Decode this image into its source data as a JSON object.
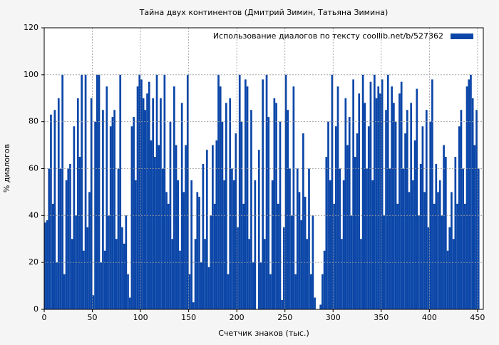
{
  "chart_data": {
    "type": "bar",
    "title": "Тайна двух континентов (Дмитрий Зимин, Татьяна Зимина)",
    "x_label": "Счетчик знаков (тыс.)",
    "y_label": "% диалогов",
    "legend_position": "upper right",
    "grid": true,
    "xlim": [
      0,
      456
    ],
    "ylim": [
      0,
      120
    ],
    "xticks": [
      0,
      50,
      100,
      150,
      200,
      250,
      300,
      350,
      400,
      450
    ],
    "yticks": [
      0,
      20,
      40,
      60,
      80,
      100,
      120
    ],
    "series": [
      {
        "name": "Использование диалогов по тексту  coollib.net/b/527362",
        "color": "#0b46a8",
        "x": [
          0,
          2,
          4,
          6,
          8,
          10,
          12,
          14,
          16,
          18,
          20,
          22,
          24,
          26,
          28,
          30,
          32,
          34,
          36,
          38,
          40,
          42,
          44,
          46,
          48,
          50,
          52,
          54,
          56,
          58,
          60,
          62,
          64,
          66,
          68,
          70,
          72,
          74,
          76,
          78,
          80,
          82,
          84,
          86,
          88,
          90,
          92,
          94,
          96,
          98,
          100,
          102,
          104,
          106,
          108,
          110,
          112,
          114,
          116,
          118,
          120,
          122,
          124,
          126,
          128,
          130,
          132,
          134,
          136,
          138,
          140,
          142,
          144,
          146,
          148,
          150,
          152,
          154,
          156,
          158,
          160,
          162,
          164,
          166,
          168,
          170,
          172,
          174,
          176,
          178,
          180,
          182,
          184,
          186,
          188,
          190,
          192,
          194,
          196,
          198,
          200,
          202,
          204,
          206,
          208,
          210,
          212,
          214,
          216,
          218,
          220,
          222,
          224,
          226,
          228,
          230,
          232,
          234,
          236,
          238,
          240,
          242,
          244,
          246,
          248,
          250,
          252,
          254,
          256,
          258,
          260,
          262,
          264,
          266,
          268,
          270,
          272,
          274,
          276,
          278,
          280,
          282,
          284,
          286,
          288,
          290,
          292,
          294,
          296,
          298,
          300,
          302,
          304,
          306,
          308,
          310,
          312,
          314,
          316,
          318,
          320,
          322,
          324,
          326,
          328,
          330,
          332,
          334,
          336,
          338,
          340,
          342,
          344,
          346,
          348,
          350,
          352,
          354,
          356,
          358,
          360,
          362,
          364,
          366,
          368,
          370,
          372,
          374,
          376,
          378,
          380,
          382,
          384,
          386,
          388,
          390,
          392,
          394,
          396,
          398,
          400,
          402,
          404,
          406,
          408,
          410,
          412,
          414,
          416,
          418,
          420,
          422,
          424,
          426,
          428,
          430,
          432,
          434,
          436,
          438,
          440,
          442,
          444,
          446,
          448,
          450
        ],
        "values": [
          37,
          38,
          60,
          83,
          45,
          85,
          20,
          90,
          60,
          100,
          15,
          55,
          60,
          62,
          30,
          78,
          40,
          90,
          65,
          100,
          25,
          100,
          35,
          50,
          90,
          6,
          80,
          100,
          100,
          20,
          85,
          25,
          95,
          40,
          78,
          82,
          85,
          30,
          60,
          100,
          35,
          28,
          40,
          15,
          5,
          78,
          82,
          55,
          95,
          100,
          98,
          90,
          85,
          92,
          97,
          72,
          90,
          65,
          100,
          70,
          90,
          60,
          100,
          50,
          45,
          80,
          30,
          95,
          70,
          55,
          25,
          88,
          50,
          70,
          100,
          15,
          55,
          3,
          30,
          50,
          48,
          20,
          62,
          30,
          68,
          18,
          40,
          70,
          45,
          72,
          100,
          95,
          80,
          55,
          88,
          15,
          90,
          60,
          55,
          75,
          35,
          100,
          80,
          45,
          98,
          95,
          30,
          85,
          20,
          55,
          0,
          68,
          20,
          98,
          30,
          100,
          82,
          15,
          55,
          90,
          88,
          45,
          80,
          4,
          35,
          100,
          85,
          60,
          40,
          95,
          15,
          60,
          50,
          38,
          75,
          48,
          30,
          60,
          15,
          40,
          5,
          0,
          0,
          2,
          15,
          25,
          65,
          80,
          55,
          100,
          45,
          78,
          95,
          60,
          30,
          55,
          90,
          70,
          82,
          40,
          98,
          65,
          75,
          92,
          30,
          100,
          88,
          60,
          78,
          97,
          55,
          100,
          90,
          95,
          92,
          98,
          40,
          85,
          100,
          60,
          95,
          88,
          80,
          45,
          92,
          97,
          60,
          75,
          85,
          50,
          88,
          55,
          72,
          94,
          40,
          62,
          78,
          50,
          85,
          35,
          80,
          98,
          45,
          62,
          50,
          55,
          40,
          70,
          65,
          25,
          35,
          50,
          30,
          65,
          45,
          78,
          85,
          60,
          45,
          95,
          98,
          100,
          90,
          70,
          85,
          60
        ]
      }
    ]
  }
}
